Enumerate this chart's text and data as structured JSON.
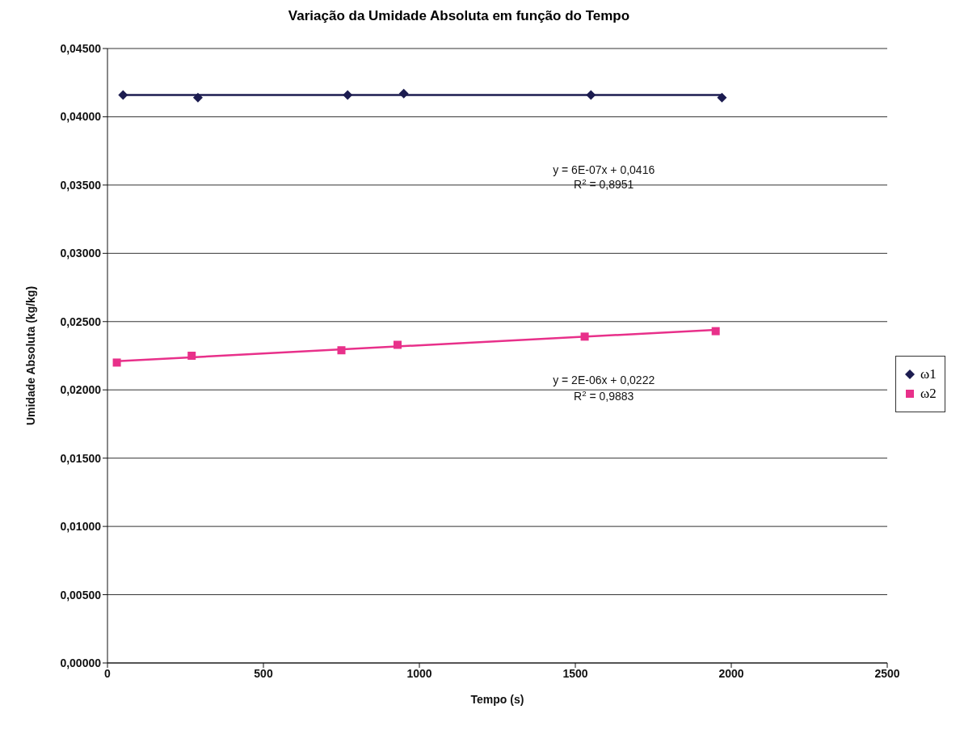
{
  "chart_data": {
    "type": "scatter",
    "title": "Variação da Umidade Absoluta em função do Tempo",
    "xlabel": "Tempo (s)",
    "ylabel": "Umidade Absoluta (kg/kg)",
    "xlim": [
      0,
      2500
    ],
    "xticks": [
      0,
      500,
      1000,
      1500,
      2000,
      2500
    ],
    "ylim": [
      0,
      0.045
    ],
    "yticks": [
      {
        "value": 0,
        "label": "0,00000"
      },
      {
        "value": 0.005,
        "label": "0,00500"
      },
      {
        "value": 0.01,
        "label": "0,01000"
      },
      {
        "value": 0.015,
        "label": "0,01500"
      },
      {
        "value": 0.02,
        "label": "0,02000"
      },
      {
        "value": 0.025,
        "label": "0,02500"
      },
      {
        "value": 0.03,
        "label": "0,03000"
      },
      {
        "value": 0.035,
        "label": "0,03500"
      },
      {
        "value": 0.04,
        "label": "0,04000"
      },
      {
        "value": 0.045,
        "label": "0,04500"
      }
    ],
    "grid": "y",
    "legend": "right",
    "series": [
      {
        "name": "ω1",
        "marker": "diamond",
        "color": "#1c1c50",
        "x": [
          50,
          290,
          770,
          950,
          1550,
          1970
        ],
        "values": [
          0.0416,
          0.0414,
          0.0416,
          0.0417,
          0.0416,
          0.0414
        ]
      },
      {
        "name": "ω2",
        "marker": "square",
        "color": "#e8308a",
        "x": [
          30,
          270,
          750,
          930,
          1530,
          1950
        ],
        "values": [
          0.022,
          0.0225,
          0.0229,
          0.0233,
          0.0239,
          0.0243
        ]
      },
      {
        "type": "line",
        "color": "#1c1c50",
        "x": [
          50,
          1970
        ],
        "values": [
          0.0416,
          0.0416
        ]
      },
      {
        "type": "line",
        "color": "#e8308a",
        "x": [
          30,
          1950
        ],
        "values": [
          0.0221,
          0.0244
        ]
      }
    ],
    "annotations": [
      "y = 6E-07x + 0,0416",
      "R$^{2}$ = 0,8951",
      "y = 2E-06x + 0,0222",
      "R$^{2}$ = 0,9883"
    ]
  }
}
